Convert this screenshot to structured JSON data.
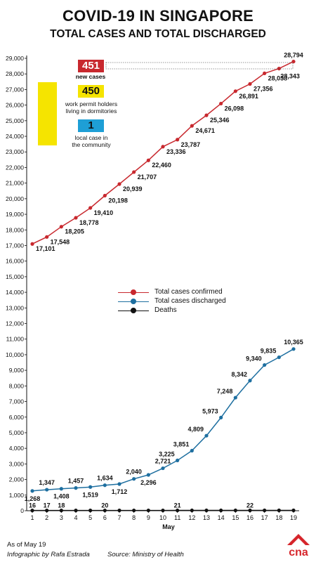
{
  "title": "COVID-19 IN SINGAPORE",
  "subtitle": "TOTAL CASES AND TOTAL DISCHARGED",
  "callouts": {
    "new_cases_value": "451",
    "new_cases_label": "new cases",
    "dorm_value": "450",
    "dorm_label_1": "work permit holders",
    "dorm_label_2": "living in dormitories",
    "community_value": "1",
    "community_label_1": "local case in",
    "community_label_2": "the community",
    "colors": {
      "new_cases": "#c8282e",
      "dorm": "#f5e400",
      "community": "#1e9fd6"
    }
  },
  "legend": [
    {
      "label": "Total cases confirmed",
      "color": "#c8282e"
    },
    {
      "label": "Total cases discharged",
      "color": "#1e6fa0"
    },
    {
      "label": "Deaths",
      "color": "#111111"
    }
  ],
  "footer": {
    "as_of": "As of May 19",
    "credit": "Infographic by Rafa Estrada",
    "source": "Source: Ministry of Health",
    "logo_text": "cna"
  },
  "chart_data": {
    "type": "line",
    "xlabel": "May",
    "ylabel": "",
    "x": [
      1,
      2,
      3,
      4,
      5,
      6,
      7,
      8,
      9,
      10,
      11,
      12,
      13,
      14,
      15,
      16,
      17,
      18,
      19
    ],
    "ylim": [
      0,
      29000
    ],
    "yticks": [
      0,
      1000,
      2000,
      3000,
      4000,
      5000,
      6000,
      7000,
      8000,
      9000,
      10000,
      11000,
      12000,
      13000,
      14000,
      15000,
      16000,
      17000,
      18000,
      19000,
      20000,
      21000,
      22000,
      23000,
      24000,
      25000,
      26000,
      27000,
      28000,
      29000
    ],
    "ytick_labels": [
      "0",
      "1,000",
      "2,000",
      "3,000",
      "4,000",
      "5,000",
      "6,000",
      "7,000",
      "8,000",
      "9,000",
      "10,000",
      "11,000",
      "12,000",
      "13,000",
      "14,000",
      "15,000",
      "16,000",
      "17,000",
      "18,000",
      "19,000",
      "20,000",
      "21,000",
      "22,000",
      "23,000",
      "24,000",
      "25,000",
      "26,000",
      "27,000",
      "28,000",
      "29,000"
    ],
    "grid": false,
    "series": [
      {
        "name": "Total cases confirmed",
        "color": "#c8282e",
        "values": [
          17101,
          17548,
          18205,
          18778,
          19410,
          20198,
          20939,
          21707,
          22460,
          23336,
          23787,
          24671,
          25346,
          26098,
          26891,
          27356,
          28038,
          28343,
          28794
        ],
        "labels": [
          "17,101",
          "17,548",
          "18,205",
          "18,778",
          "19,410",
          "20,198",
          "20,939",
          "21,707",
          "22,460",
          "23,336",
          "23,787",
          "24,671",
          "25,346",
          "26,098",
          "26,891",
          "27,356",
          "28,038",
          "28,343",
          "28,794"
        ]
      },
      {
        "name": "Total cases discharged",
        "color": "#1e6fa0",
        "values": [
          1268,
          1347,
          1408,
          1457,
          1519,
          1634,
          1712,
          2040,
          2296,
          2721,
          3225,
          3851,
          4809,
          5973,
          7248,
          8342,
          9340,
          9835,
          10365
        ],
        "labels": [
          "1,268",
          "1,347",
          "1,408",
          "1,457",
          "1,519",
          "1,634",
          "1,712",
          "2,040",
          "2,296",
          "2,721",
          "3,225",
          "3,851",
          "4,809",
          "5,973",
          "7,248",
          "8,342",
          "9,340",
          "9,835",
          "10,365"
        ]
      },
      {
        "name": "Deaths",
        "color": "#111111",
        "values": [
          16,
          17,
          18,
          18,
          18,
          20,
          20,
          20,
          20,
          20,
          21,
          21,
          21,
          21,
          21,
          22,
          22,
          22,
          22
        ],
        "labels": [
          "16",
          "17",
          "18",
          "",
          "",
          "20",
          "",
          "",
          "",
          "",
          "21",
          "",
          "",
          "",
          "",
          "22",
          "",
          "",
          ""
        ]
      }
    ]
  }
}
